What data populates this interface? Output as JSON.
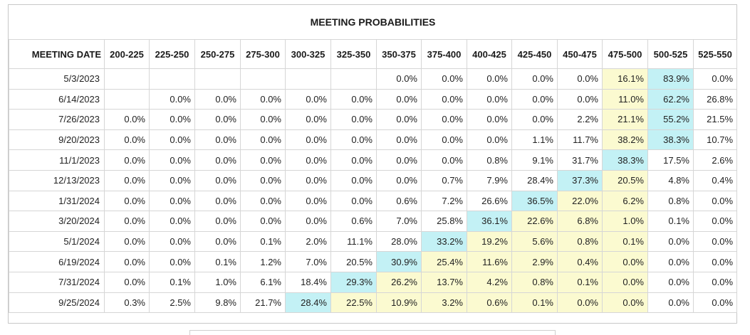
{
  "title": "MEETING PROBABILITIES",
  "date_header": "MEETING DATE",
  "ranges": [
    "200-225",
    "225-250",
    "250-275",
    "275-300",
    "300-325",
    "325-350",
    "350-375",
    "375-400",
    "400-425",
    "425-450",
    "450-475",
    "475-500",
    "500-525",
    "525-550"
  ],
  "highlight_colors": {
    "yellow": "#fbfad0",
    "cyan": "#c3f1f5"
  },
  "rows": [
    {
      "date": "5/3/2023",
      "values": [
        "",
        "",
        "",
        "",
        "",
        "",
        "0.0%",
        "0.0%",
        "0.0%",
        "0.0%",
        "0.0%",
        "16.1%",
        "83.9%",
        "0.0%"
      ],
      "yellow": [
        11
      ],
      "cyan": 12
    },
    {
      "date": "6/14/2023",
      "values": [
        "",
        "0.0%",
        "0.0%",
        "0.0%",
        "0.0%",
        "0.0%",
        "0.0%",
        "0.0%",
        "0.0%",
        "0.0%",
        "0.0%",
        "11.0%",
        "62.2%",
        "26.8%"
      ],
      "yellow": [
        11
      ],
      "cyan": 12
    },
    {
      "date": "7/26/2023",
      "values": [
        "0.0%",
        "0.0%",
        "0.0%",
        "0.0%",
        "0.0%",
        "0.0%",
        "0.0%",
        "0.0%",
        "0.0%",
        "0.0%",
        "2.2%",
        "21.1%",
        "55.2%",
        "21.5%"
      ],
      "yellow": [
        11
      ],
      "cyan": 12
    },
    {
      "date": "9/20/2023",
      "values": [
        "0.0%",
        "0.0%",
        "0.0%",
        "0.0%",
        "0.0%",
        "0.0%",
        "0.0%",
        "0.0%",
        "0.0%",
        "1.1%",
        "11.7%",
        "38.2%",
        "38.3%",
        "10.7%"
      ],
      "yellow": [
        11
      ],
      "cyan": 12
    },
    {
      "date": "11/1/2023",
      "values": [
        "0.0%",
        "0.0%",
        "0.0%",
        "0.0%",
        "0.0%",
        "0.0%",
        "0.0%",
        "0.0%",
        "0.8%",
        "9.1%",
        "31.7%",
        "38.3%",
        "17.5%",
        "2.6%"
      ],
      "yellow": [],
      "cyan": 11
    },
    {
      "date": "12/13/2023",
      "values": [
        "0.0%",
        "0.0%",
        "0.0%",
        "0.0%",
        "0.0%",
        "0.0%",
        "0.0%",
        "0.7%",
        "7.9%",
        "28.4%",
        "37.3%",
        "20.5%",
        "4.8%",
        "0.4%"
      ],
      "yellow": [
        11
      ],
      "cyan": 10
    },
    {
      "date": "1/31/2024",
      "values": [
        "0.0%",
        "0.0%",
        "0.0%",
        "0.0%",
        "0.0%",
        "0.0%",
        "0.6%",
        "7.2%",
        "26.6%",
        "36.5%",
        "22.0%",
        "6.2%",
        "0.8%",
        "0.0%"
      ],
      "yellow": [
        10,
        11
      ],
      "cyan": 9
    },
    {
      "date": "3/20/2024",
      "values": [
        "0.0%",
        "0.0%",
        "0.0%",
        "0.0%",
        "0.0%",
        "0.6%",
        "7.0%",
        "25.8%",
        "36.1%",
        "22.6%",
        "6.8%",
        "1.0%",
        "0.1%",
        "0.0%"
      ],
      "yellow": [
        9,
        10,
        11
      ],
      "cyan": 8
    },
    {
      "date": "5/1/2024",
      "values": [
        "0.0%",
        "0.0%",
        "0.0%",
        "0.1%",
        "2.0%",
        "11.1%",
        "28.0%",
        "33.2%",
        "19.2%",
        "5.6%",
        "0.8%",
        "0.1%",
        "0.0%",
        "0.0%"
      ],
      "yellow": [
        8,
        9,
        10,
        11
      ],
      "cyan": 7
    },
    {
      "date": "6/19/2024",
      "values": [
        "0.0%",
        "0.0%",
        "0.1%",
        "1.2%",
        "7.0%",
        "20.5%",
        "30.9%",
        "25.4%",
        "11.6%",
        "2.9%",
        "0.4%",
        "0.0%",
        "0.0%",
        "0.0%"
      ],
      "yellow": [
        7,
        8,
        9,
        10,
        11
      ],
      "cyan": 6
    },
    {
      "date": "7/31/2024",
      "values": [
        "0.0%",
        "0.1%",
        "1.0%",
        "6.1%",
        "18.4%",
        "29.3%",
        "26.2%",
        "13.7%",
        "4.2%",
        "0.8%",
        "0.1%",
        "0.0%",
        "0.0%",
        "0.0%"
      ],
      "yellow": [
        6,
        7,
        8,
        9,
        10,
        11
      ],
      "cyan": 5
    },
    {
      "date": "9/25/2024",
      "values": [
        "0.3%",
        "2.5%",
        "9.8%",
        "21.7%",
        "28.4%",
        "22.5%",
        "10.9%",
        "3.2%",
        "0.6%",
        "0.1%",
        "0.0%",
        "0.0%",
        "0.0%",
        "0.0%"
      ],
      "yellow": [
        5,
        6,
        7,
        8,
        9,
        10,
        11
      ],
      "cyan": 4
    }
  ]
}
